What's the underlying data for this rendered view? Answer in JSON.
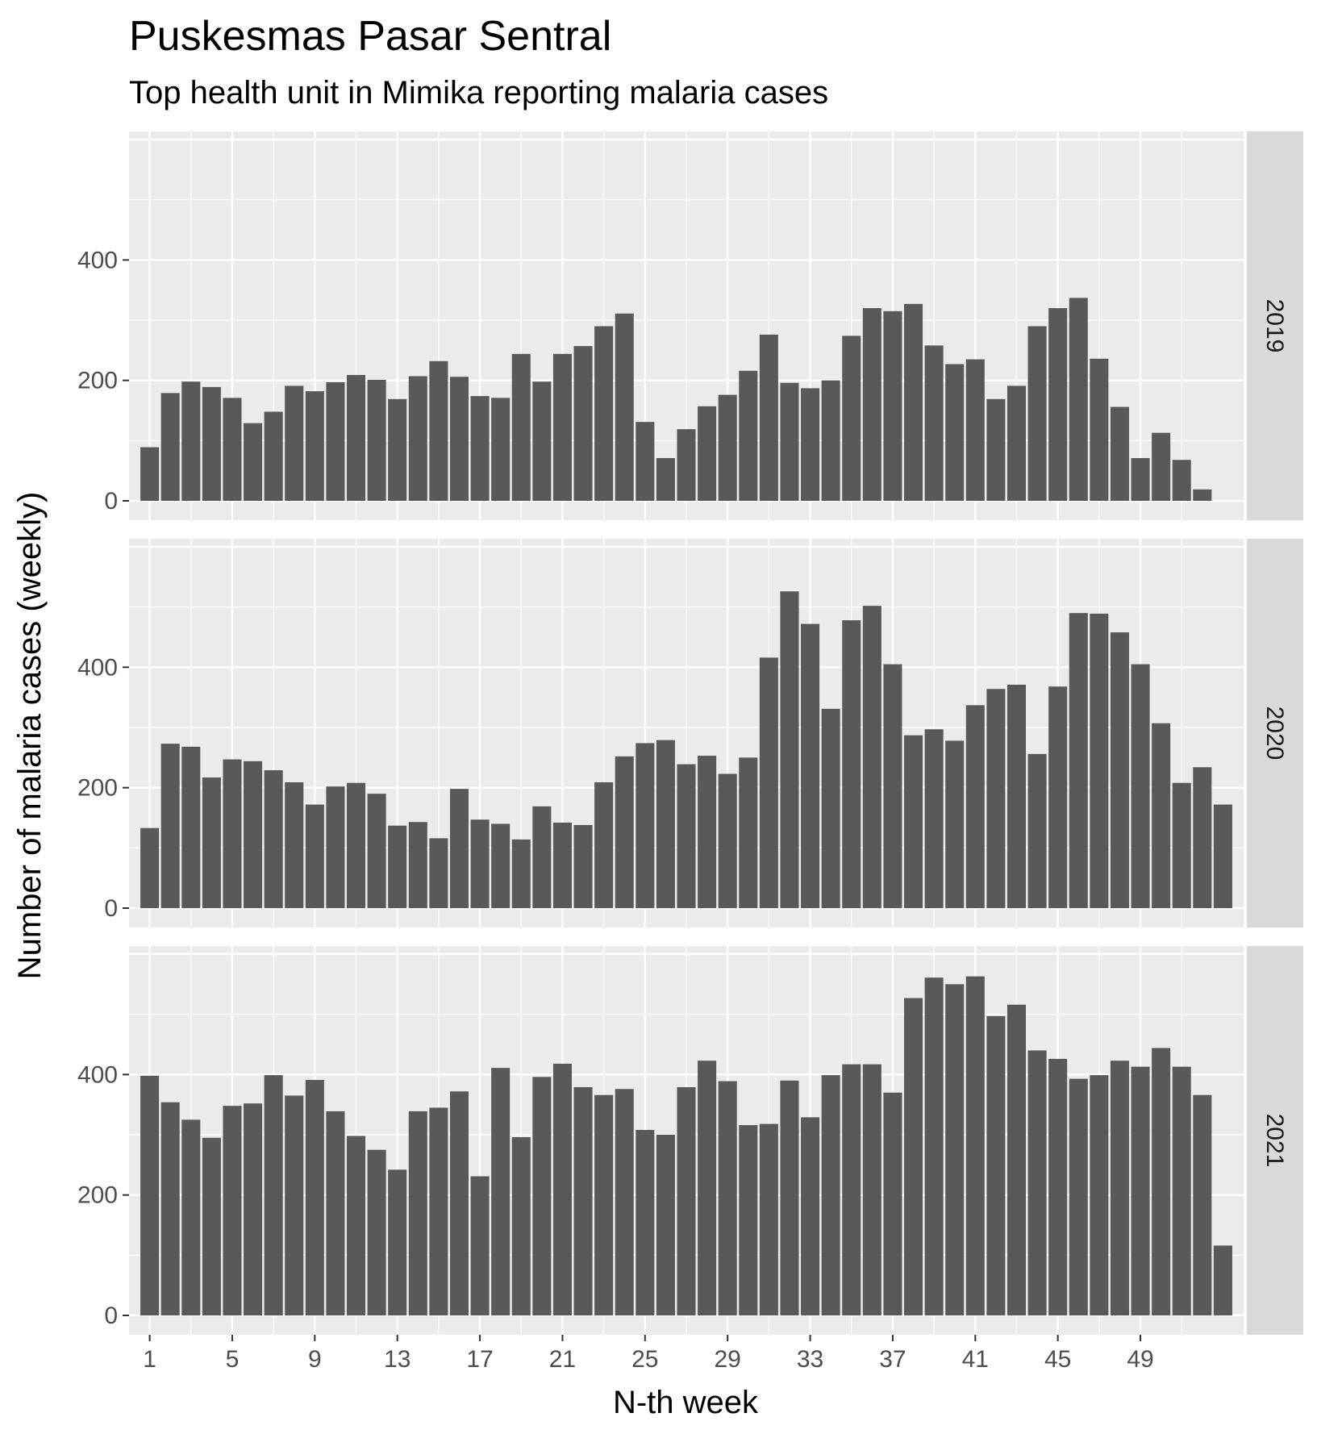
{
  "chart_data": {
    "type": "bar",
    "title": "Puskesmas Pasar Sentral",
    "subtitle": "Top health unit in Mimika reporting malaria cases",
    "xlabel": "N-th week",
    "ylabel": "Number of malaria cases (weekly)",
    "x_ticks": [
      1,
      5,
      9,
      13,
      17,
      21,
      25,
      29,
      33,
      37,
      41,
      45,
      49
    ],
    "y_ticks": [
      0,
      200,
      400
    ],
    "ylim": [
      0,
      600
    ],
    "xlim": [
      0,
      54
    ],
    "facets": [
      {
        "label": "2019",
        "weeks": [
          1,
          2,
          3,
          4,
          5,
          6,
          7,
          8,
          9,
          10,
          11,
          12,
          13,
          14,
          15,
          16,
          17,
          18,
          19,
          20,
          21,
          22,
          23,
          24,
          25,
          26,
          27,
          28,
          29,
          30,
          31,
          32,
          33,
          34,
          35,
          36,
          37,
          38,
          39,
          40,
          41,
          42,
          43,
          44,
          45,
          46,
          47,
          48,
          49,
          50,
          51,
          52,
          53
        ],
        "values": [
          89,
          179,
          198,
          189,
          171,
          129,
          148,
          191,
          182,
          197,
          209,
          201,
          169,
          207,
          232,
          206,
          174,
          171,
          244,
          198,
          244,
          257,
          290,
          311,
          131,
          71,
          119,
          157,
          176,
          216,
          276,
          196,
          187,
          200,
          274,
          320,
          315,
          327,
          258,
          227,
          235,
          169,
          191,
          290,
          320,
          337,
          236,
          156,
          71,
          113,
          68,
          19,
          0
        ]
      },
      {
        "label": "2020",
        "weeks": [
          1,
          2,
          3,
          4,
          5,
          6,
          7,
          8,
          9,
          10,
          11,
          12,
          13,
          14,
          15,
          16,
          17,
          18,
          19,
          20,
          21,
          22,
          23,
          24,
          25,
          26,
          27,
          28,
          29,
          30,
          31,
          32,
          33,
          34,
          35,
          36,
          37,
          38,
          39,
          40,
          41,
          42,
          43,
          44,
          45,
          46,
          47,
          48,
          49,
          50,
          51,
          52,
          53
        ],
        "values": [
          133,
          273,
          268,
          217,
          247,
          244,
          229,
          209,
          172,
          202,
          208,
          190,
          137,
          143,
          116,
          198,
          147,
          140,
          114,
          169,
          142,
          138,
          209,
          252,
          274,
          279,
          239,
          253,
          223,
          250,
          416,
          526,
          472,
          331,
          478,
          502,
          405,
          287,
          297,
          278,
          337,
          364,
          371,
          256,
          368,
          490,
          489,
          458,
          405,
          307,
          208,
          234,
          172
        ]
      },
      {
        "label": "2021",
        "weeks": [
          1,
          2,
          3,
          4,
          5,
          6,
          7,
          8,
          9,
          10,
          11,
          12,
          13,
          14,
          15,
          16,
          17,
          18,
          19,
          20,
          21,
          22,
          23,
          24,
          25,
          26,
          27,
          28,
          29,
          30,
          31,
          32,
          33,
          34,
          35,
          36,
          37,
          38,
          39,
          40,
          41,
          42,
          43,
          44,
          45,
          46,
          47,
          48,
          49,
          50,
          51,
          52,
          53
        ],
        "values": [
          398,
          354,
          325,
          295,
          348,
          352,
          399,
          365,
          391,
          339,
          298,
          275,
          242,
          339,
          345,
          372,
          231,
          411,
          296,
          396,
          418,
          379,
          366,
          376,
          308,
          300,
          379,
          423,
          389,
          316,
          318,
          390,
          329,
          399,
          417,
          417,
          370,
          527,
          561,
          550,
          563,
          497,
          516,
          440,
          426,
          393,
          399,
          423,
          413,
          444,
          413,
          366,
          116
        ]
      }
    ]
  }
}
